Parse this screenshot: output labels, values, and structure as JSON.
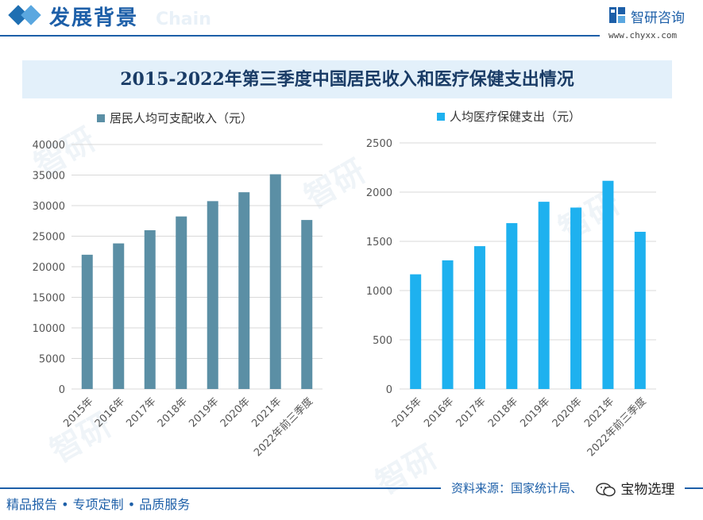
{
  "header": {
    "section_title": "发展背景",
    "watermark_text": "Chain",
    "logo_name": "智研咨询",
    "logo_url": "www.chyxx.com",
    "colors": {
      "brand": "#1d5fa8"
    }
  },
  "banner": {
    "title": "2015-2022年第三季度中国居民收入和医疗保健支出情况"
  },
  "chart_data": [
    {
      "type": "bar",
      "title": "",
      "legend": "居民人均可支配收入（元）",
      "legend_position": "top-left",
      "color": "#5b8fa5",
      "categories": [
        "2015年",
        "2016年",
        "2017年",
        "2018年",
        "2019年",
        "2020年",
        "2021年",
        "2022年前三季度"
      ],
      "series": [
        {
          "name": "居民人均可支配收入（元）",
          "values": [
            21966,
            23821,
            25974,
            28228,
            30733,
            32189,
            35128,
            27650
          ]
        }
      ],
      "ylim": [
        0,
        40000
      ],
      "yticks": [
        0,
        5000,
        10000,
        15000,
        20000,
        25000,
        30000,
        35000,
        40000
      ],
      "grid": true
    },
    {
      "type": "bar",
      "title": "",
      "legend": "人均医疗保健支出（元）",
      "legend_position": "top-left",
      "color": "#1eb1ef",
      "categories": [
        "2015年",
        "2016年",
        "2017年",
        "2018年",
        "2019年",
        "2020年",
        "2021年",
        "2022年前三季度"
      ],
      "series": [
        {
          "name": "人均医疗保健支出（元）",
          "values": [
            1165,
            1307,
            1451,
            1685,
            1902,
            1843,
            2115,
            1597
          ]
        }
      ],
      "ylim": [
        0,
        2500
      ],
      "yticks": [
        0,
        500,
        1000,
        1500,
        2000,
        2500
      ],
      "grid": true
    }
  ],
  "footer": {
    "slogan": "精品报告 • 专项定制 • 品质服务",
    "source": "资料来源：国家统计局、",
    "badge": "宝物选理"
  }
}
